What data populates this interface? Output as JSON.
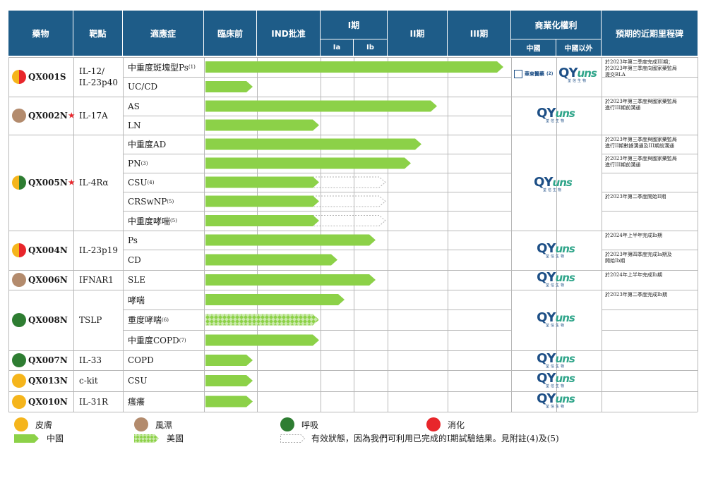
{
  "header": {
    "drug": "藥物",
    "target": "靶點",
    "indication": "適應症",
    "preclinical": "臨床前",
    "ind": "IND批准",
    "phase1": "I期",
    "phase1a": "Ia",
    "phase1b": "Ib",
    "phase2": "II期",
    "phase3": "III期",
    "rights": "商業化權利",
    "rights_china": "中國",
    "rights_ex_china": "中國以外",
    "milestones": "預期的近期里程碑"
  },
  "colors": {
    "header_bg": "#1e5c88",
    "china_bar": "#8cd148",
    "skin": "#f5b51c",
    "rheum": "#b38b6d",
    "resp": "#2e7d32",
    "digest": "#e8262b"
  },
  "drugs": [
    {
      "name": "QX001S",
      "star": "",
      "target": "IL-12/\nIL-23p40",
      "dot": [
        "skin",
        "digest"
      ],
      "indications": [
        {
          "label": "中重度斑塊型Ps",
          "note": "(1)"
        },
        {
          "label": "UC/CD",
          "note": ""
        }
      ]
    },
    {
      "name": "QX002N",
      "star": "★",
      "target": "IL-17A",
      "dot": [
        "rheum"
      ],
      "indications": [
        {
          "label": "AS",
          "note": ""
        },
        {
          "label": "LN",
          "note": ""
        }
      ]
    },
    {
      "name": "QX005N",
      "star": "★",
      "target": "IL-4Rα",
      "dot": [
        "skin",
        "resp"
      ],
      "indications": [
        {
          "label": "中重度AD",
          "note": ""
        },
        {
          "label": "PN",
          "note": "(3)"
        },
        {
          "label": "CSU",
          "note": "(4)"
        },
        {
          "label": "CRSwNP",
          "note": "(5)"
        },
        {
          "label": "中重度哮喘",
          "note": "(5)"
        }
      ]
    },
    {
      "name": "QX004N",
      "star": "",
      "target": "IL-23p19",
      "dot": [
        "skin",
        "digest"
      ],
      "indications": [
        {
          "label": "Ps",
          "note": ""
        },
        {
          "label": "CD",
          "note": ""
        }
      ]
    },
    {
      "name": "QX006N",
      "star": "",
      "target": "IFNAR1",
      "dot": [
        "rheum"
      ],
      "indications": [
        {
          "label": "SLE",
          "note": ""
        }
      ]
    },
    {
      "name": "QX008N",
      "star": "",
      "target": "TSLP",
      "dot": [
        "resp"
      ],
      "indications": [
        {
          "label": "哮喘",
          "note": ""
        },
        {
          "label": "重度哮喘",
          "note": "(6)"
        },
        {
          "label": "中重度COPD",
          "note": "(7)"
        }
      ]
    },
    {
      "name": "QX007N",
      "star": "",
      "target": "IL-33",
      "dot": [
        "resp"
      ],
      "indications": [
        {
          "label": "COPD",
          "note": ""
        }
      ]
    },
    {
      "name": "QX013N",
      "star": "",
      "target": "c-kit",
      "dot": [
        "skin"
      ],
      "indications": [
        {
          "label": "CSU",
          "note": ""
        }
      ]
    },
    {
      "name": "QX010N",
      "star": "",
      "target": "IL-31R",
      "dot": [
        "skin"
      ],
      "indications": [
        {
          "label": "瘙癢",
          "note": ""
        }
      ]
    }
  ],
  "progress": [
    {
      "indication": "中重度斑塊型Ps",
      "stage": "Phase III (near completion)",
      "region": "中國"
    },
    {
      "indication": "UC/CD",
      "stage": "Preclinical",
      "region": "中國"
    },
    {
      "indication": "AS",
      "stage": "Phase II (completed)",
      "region": "中國"
    },
    {
      "indication": "LN",
      "stage": "IND",
      "region": "中國"
    },
    {
      "indication": "中重度AD",
      "stage": "Phase II",
      "region": "中國"
    },
    {
      "indication": "PN",
      "stage": "Phase II",
      "region": "中國"
    },
    {
      "indication": "CSU",
      "stage": "IND",
      "region": "中國",
      "effective": "Phase I"
    },
    {
      "indication": "CRSwNP",
      "stage": "IND",
      "region": "中國",
      "effective": "Phase I"
    },
    {
      "indication": "中重度哮喘",
      "stage": "IND",
      "region": "中國",
      "effective": "Phase I"
    },
    {
      "indication": "Ps",
      "stage": "Phase I",
      "region": "中國"
    },
    {
      "indication": "CD",
      "stage": "Phase Ib",
      "region": "中國"
    },
    {
      "indication": "SLE",
      "stage": "Phase I",
      "region": "中國"
    },
    {
      "indication": "哮喘",
      "stage": "Phase Ib",
      "region": "中國"
    },
    {
      "indication": "重度哮喘",
      "stage": "IND",
      "region": "美國"
    },
    {
      "indication": "中重度COPD",
      "stage": "IND",
      "region": "中國"
    },
    {
      "indication": "COPD",
      "stage": "Preclinical",
      "region": "中國"
    },
    {
      "indication": "CSU",
      "stage": "Preclinical",
      "region": "中國"
    },
    {
      "indication": "瘙癢",
      "stage": "Preclinical",
      "region": "中國"
    }
  ],
  "partners": {
    "hs_name": "華東醫藥",
    "hs_note": "(2)",
    "qyuns_word": "QY",
    "qyuns_suffix": "uns",
    "qyuns_sub": "荃信生物"
  },
  "milestones": [
    "於2023年第二季度完成III期；\n於2023年第三季度向國家藥監局\n提交BLA",
    "於2023年第三季度與國家藥監局\n進行III期前溝通",
    "於2023年第三季度與國家藥監局\n進行II期數據溝通及III期前溝通",
    "於2023年第三季度與國家藥監局\n進行III期前溝通",
    "於2023年第二季度開始II期",
    "於2024年上半年完成Ib期",
    "於2023年第四季度完成Ia期及\n開始Ib期",
    "於2024年上半年完成Ib期",
    "於2023年第二季度完成Ib期"
  ],
  "legend": {
    "skin": "皮膚",
    "rheum": "風濕",
    "resp": "呼吸",
    "digest": "消化",
    "china": "中國",
    "us": "美國",
    "effective": "有效狀態，因為我們可利用已完成的I期試驗結果。見附註(4)及(5)"
  }
}
